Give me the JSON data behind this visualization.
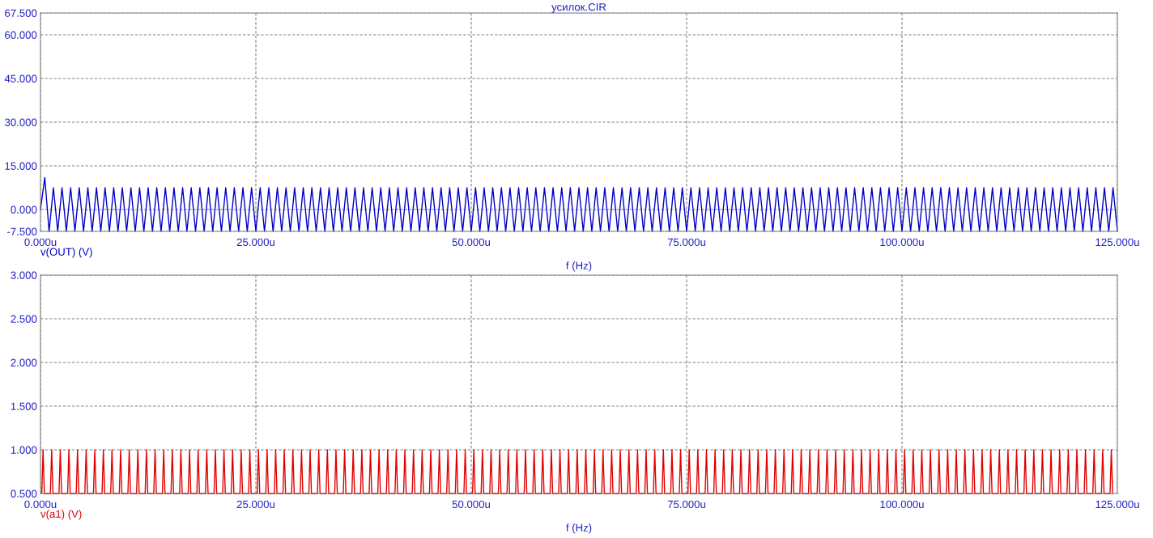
{
  "chart_data": [
    {
      "type": "line",
      "title": "усилок.CIR",
      "xlabel": "f (Hz)",
      "xlim": [
        0,
        125
      ],
      "xticks": [
        {
          "value": 0,
          "label": "0.000u"
        },
        {
          "value": 25,
          "label": "25.000u"
        },
        {
          "value": 50,
          "label": "50.000u"
        },
        {
          "value": 75,
          "label": "75.000u"
        },
        {
          "value": 100,
          "label": "100.000u"
        },
        {
          "value": 125,
          "label": "125.000u"
        }
      ],
      "ylim": [
        -7.5,
        67.5
      ],
      "yticks": [
        {
          "value": -7.5,
          "label": "-7.500"
        },
        {
          "value": 0,
          "label": "0.000"
        },
        {
          "value": 15,
          "label": "15.000"
        },
        {
          "value": 30,
          "label": "30.000"
        },
        {
          "value": 45,
          "label": "45.000"
        },
        {
          "value": 60,
          "label": "60.000"
        },
        {
          "value": 67.5,
          "label": "67.500"
        }
      ],
      "grid": true,
      "line_style": "solid",
      "series": [
        {
          "name": "v(OUT) (V)",
          "color": "#0000c8",
          "x": [
            0,
            0.5,
            1,
            1.5,
            2,
            2.5,
            3,
            3.5,
            4,
            4.5,
            5,
            5.5,
            6,
            6.5,
            7,
            7.5,
            8,
            8.5,
            9,
            9.5,
            10,
            10.5,
            11,
            11.5,
            12,
            12.5,
            13,
            13.5,
            14,
            14.5,
            15,
            15.5,
            16,
            16.5,
            17,
            17.5,
            18,
            18.5,
            19,
            19.5,
            20,
            20.5,
            21,
            21.5,
            22,
            22.5,
            23,
            23.5,
            24,
            24.5,
            25,
            25.5,
            26,
            26.5,
            27,
            27.5,
            28,
            28.5,
            29,
            29.5,
            30,
            30.5,
            31,
            31.5,
            32,
            32.5,
            33,
            33.5,
            34,
            34.5,
            35,
            35.5,
            36,
            36.5,
            37,
            37.5,
            38,
            38.5,
            39,
            39.5,
            40,
            40.5,
            41,
            41.5,
            42,
            42.5,
            43,
            43.5,
            44,
            44.5,
            45,
            45.5,
            46,
            46.5,
            47,
            47.5,
            48,
            48.5,
            49,
            49.5,
            50,
            50.5,
            51,
            51.5,
            52,
            52.5,
            53,
            53.5,
            54,
            54.5,
            55,
            55.5,
            56,
            56.5,
            57,
            57.5,
            58,
            58.5,
            59,
            59.5,
            60,
            60.5,
            61,
            61.5,
            62,
            62.5,
            63,
            63.5,
            64,
            64.5,
            65,
            65.5,
            66,
            66.5,
            67,
            67.5,
            68,
            68.5,
            69,
            69.5,
            70,
            70.5,
            71,
            71.5,
            72,
            72.5,
            73,
            73.5,
            74,
            74.5,
            75,
            75.5,
            76,
            76.5,
            77,
            77.5,
            78,
            78.5,
            79,
            79.5,
            80,
            80.5,
            81,
            81.5,
            82,
            82.5,
            83,
            83.5,
            84,
            84.5,
            85,
            85.5,
            86,
            86.5,
            87,
            87.5,
            88,
            88.5,
            89,
            89.5,
            90,
            90.5,
            91,
            91.5,
            92,
            92.5,
            93,
            93.5,
            94,
            94.5,
            95,
            95.5,
            96,
            96.5,
            97,
            97.5,
            98,
            98.5,
            99,
            99.5,
            100,
            100.5,
            101,
            101.5,
            102,
            102.5,
            103,
            103.5,
            104,
            104.5,
            105,
            105.5,
            106,
            106.5,
            107,
            107.5,
            108,
            108.5,
            109,
            109.5,
            110,
            110.5,
            111,
            111.5,
            112,
            112.5,
            113,
            113.5,
            114,
            114.5,
            115,
            115.5,
            116,
            116.5,
            117,
            117.5,
            118,
            118.5,
            119,
            119.5,
            120,
            120.5,
            121,
            121.5,
            122,
            122.5,
            123,
            123.5,
            124,
            124.5,
            125
          ],
          "values": [
            0,
            11,
            -7.5,
            7.5,
            -7.5,
            7.5,
            -7.5,
            7.5,
            -7.5,
            7.5,
            -7.5,
            7.5,
            -7.5,
            7.5,
            -7.5,
            7.5,
            -7.5,
            7.5,
            -7.5,
            7.5,
            -7.5,
            7.5,
            -7.5,
            7.5,
            -7.5,
            7.5,
            -7.5,
            7.5,
            -7.5,
            7.5,
            -7.5,
            7.5,
            -7.5,
            7.5,
            -7.5,
            7.5,
            -7.5,
            7.5,
            -7.5,
            7.5,
            -7.5,
            7.5,
            -7.5,
            7.5,
            -7.5,
            7.5,
            -7.5,
            7.5,
            -7.5,
            7.5,
            -7.5,
            7.5,
            -7.5,
            7.5,
            -7.5,
            7.5,
            -7.5,
            7.5,
            -7.5,
            7.5,
            -7.5,
            7.5,
            -7.5,
            7.5,
            -7.5,
            7.5,
            -7.5,
            7.5,
            -7.5,
            7.5,
            -7.5,
            7.5,
            -7.5,
            7.5,
            -7.5,
            7.5,
            -7.5,
            7.5,
            -7.5,
            7.5,
            -7.5,
            7.5,
            -7.5,
            7.5,
            -7.5,
            7.5,
            -7.5,
            7.5,
            -7.5,
            7.5,
            -7.5,
            7.5,
            -7.5,
            7.5,
            -7.5,
            7.5,
            -7.5,
            7.5,
            -7.5,
            7.5,
            -7.5,
            7.5,
            -7.5,
            7.5,
            -7.5,
            7.5,
            -7.5,
            7.5,
            -7.5,
            7.5,
            -7.5,
            7.5,
            -7.5,
            7.5,
            -7.5,
            7.5,
            -7.5,
            7.5,
            -7.5,
            7.5,
            -7.5,
            7.5,
            -7.5,
            7.5,
            -7.5,
            7.5,
            -7.5,
            7.5,
            -7.5,
            7.5,
            -7.5,
            7.5,
            -7.5,
            7.5,
            -7.5,
            7.5,
            -7.5,
            7.5,
            -7.5,
            7.5,
            -7.5,
            7.5,
            -7.5,
            7.5,
            -7.5,
            7.5,
            -7.5,
            7.5,
            -7.5,
            7.5,
            -7.5,
            7.5,
            -7.5,
            7.5,
            -7.5,
            7.5,
            -7.5,
            7.5,
            -7.5,
            7.5,
            -7.5,
            7.5,
            -7.5,
            7.5,
            -7.5,
            7.5,
            -7.5,
            7.5,
            -7.5,
            7.5,
            -7.5,
            7.5,
            -7.5,
            7.5,
            -7.5,
            7.5,
            -7.5,
            7.5,
            -7.5,
            7.5,
            -7.5,
            7.5,
            -7.5,
            7.5,
            -7.5,
            7.5,
            -7.5,
            7.5,
            -7.5,
            7.5,
            -7.5,
            7.5,
            -7.5,
            7.5,
            -7.5,
            7.5,
            -7.5,
            7.5,
            -7.5,
            7.5,
            -7.5,
            7.5,
            -7.5,
            7.5,
            -7.5,
            7.5,
            -7.5,
            7.5,
            -7.5,
            7.5,
            -7.5,
            7.5,
            -7.5,
            7.5,
            -7.5,
            7.5,
            -7.5,
            7.5,
            -7.5,
            7.5,
            -7.5,
            7.5,
            -7.5,
            7.5,
            -7.5,
            7.5,
            -7.5,
            7.5,
            -7.5,
            7.5,
            -7.5,
            7.5,
            -7.5,
            7.5,
            -7.5,
            7.5,
            -7.5,
            7.5,
            -7.5,
            7.5,
            -7.5,
            7.5,
            -7.5,
            7.5,
            -7.5,
            7.5,
            -7.5,
            7.5,
            -7.5,
            7.5,
            -7.5
          ]
        }
      ]
    },
    {
      "type": "line",
      "xlabel": "f (Hz)",
      "xlim": [
        0,
        125
      ],
      "xticks": [
        {
          "value": 0,
          "label": "0.000u"
        },
        {
          "value": 25,
          "label": "25.000u"
        },
        {
          "value": 50,
          "label": "50.000u"
        },
        {
          "value": 75,
          "label": "75.000u"
        },
        {
          "value": 100,
          "label": "100.000u"
        },
        {
          "value": 125,
          "label": "125.000u"
        }
      ],
      "ylim": [
        0.5,
        3
      ],
      "yticks": [
        {
          "value": 0.5,
          "label": "0.500"
        },
        {
          "value": 1,
          "label": "1.000"
        },
        {
          "value": 1.5,
          "label": "1.500"
        },
        {
          "value": 2,
          "label": "2.000"
        },
        {
          "value": 2.5,
          "label": "2.500"
        },
        {
          "value": 3,
          "label": "3.000"
        }
      ],
      "grid": true,
      "line_style": "solid",
      "series": [
        {
          "name": "v(a1) (V)",
          "color": "#e00000",
          "x": [
            0.15,
            0.3,
            0.45,
            1.15,
            1.3,
            1.45,
            2.15,
            2.3,
            2.45,
            3.15,
            3.3,
            3.45,
            4.15,
            4.3,
            4.45,
            5.15,
            5.3,
            5.45,
            6.15,
            6.3,
            6.45,
            7.15,
            7.3,
            7.45,
            8.15,
            8.3,
            8.45,
            9.15,
            9.3,
            9.45,
            10.15,
            10.3,
            10.45,
            11.15,
            11.3,
            11.45,
            12.15,
            12.3,
            12.45,
            13.15,
            13.3,
            13.45,
            14.15,
            14.3,
            14.45,
            15.15,
            15.3,
            15.45,
            16.15,
            16.3,
            16.45,
            17.15,
            17.3,
            17.45,
            18.15,
            18.3,
            18.45,
            19.15,
            19.3,
            19.45,
            20.15,
            20.3,
            20.45,
            21.15,
            21.3,
            21.45,
            22.15,
            22.3,
            22.45,
            23.15,
            23.3,
            23.45,
            24.15,
            24.3,
            24.45,
            25.15,
            25.3,
            25.45,
            26.15,
            26.3,
            26.45,
            27.15,
            27.3,
            27.45,
            28.15,
            28.3,
            28.45,
            29.15,
            29.3,
            29.45,
            30.15,
            30.3,
            30.45,
            31.15,
            31.3,
            31.45,
            32.15,
            32.3,
            32.45,
            33.15,
            33.3,
            33.45,
            34.15,
            34.3,
            34.45,
            35.15,
            35.3,
            35.45,
            36.15,
            36.3,
            36.45,
            37.15,
            37.3,
            37.45,
            38.15,
            38.3,
            38.45,
            39.15,
            39.3,
            39.45,
            40.15,
            40.3,
            40.45,
            41.15,
            41.3,
            41.45,
            42.15,
            42.3,
            42.45,
            43.15,
            43.3,
            43.45,
            44.15,
            44.3,
            44.45,
            45.15,
            45.3,
            45.45,
            46.15,
            46.3,
            46.45,
            47.15,
            47.3,
            47.45,
            48.15,
            48.3,
            48.45,
            49.15,
            49.3,
            49.45,
            50.15,
            50.3,
            50.45,
            51.15,
            51.3,
            51.45,
            52.15,
            52.3,
            52.45,
            53.15,
            53.3,
            53.45,
            54.15,
            54.3,
            54.45,
            55.15,
            55.3,
            55.45,
            56.15,
            56.3,
            56.45,
            57.15,
            57.3,
            57.45,
            58.15,
            58.3,
            58.45,
            59.15,
            59.3,
            59.45,
            60.15,
            60.3,
            60.45,
            61.15,
            61.3,
            61.45,
            62.15,
            62.3,
            62.45,
            63.15,
            63.3,
            63.45,
            64.15,
            64.3,
            64.45,
            65.15,
            65.3,
            65.45,
            66.15,
            66.3,
            66.45,
            67.15,
            67.3,
            67.45,
            68.15,
            68.3,
            68.45,
            69.15,
            69.3,
            69.45,
            70.15,
            70.3,
            70.45,
            71.15,
            71.3,
            71.45,
            72.15,
            72.3,
            72.45,
            73.15,
            73.3,
            73.45,
            74.15,
            74.3,
            74.45,
            75.15,
            75.3,
            75.45,
            76.15,
            76.3,
            76.45,
            77.15,
            77.3,
            77.45,
            78.15,
            78.3,
            78.45,
            79.15,
            79.3,
            79.45,
            80.15,
            80.3,
            80.45,
            81.15,
            81.3,
            81.45,
            82.15,
            82.3,
            82.45,
            83.15,
            83.3,
            83.45,
            84.15,
            84.3,
            84.45,
            85.15,
            85.3,
            85.45,
            86.15,
            86.3,
            86.45,
            87.15,
            87.3,
            87.45,
            88.15,
            88.3,
            88.45,
            89.15,
            89.3,
            89.45,
            90.15,
            90.3,
            90.45,
            91.15,
            91.3,
            91.45,
            92.15,
            92.3,
            92.45,
            93.15,
            93.3,
            93.45,
            94.15,
            94.3,
            94.45,
            95.15,
            95.3,
            95.45,
            96.15,
            96.3,
            96.45,
            97.15,
            97.3,
            97.45,
            98.15,
            98.3,
            98.45,
            99.15,
            99.3,
            99.45,
            100.15,
            100.3,
            100.45,
            101.15,
            101.3,
            101.45,
            102.15,
            102.3,
            102.45,
            103.15,
            103.3,
            103.45,
            104.15,
            104.3,
            104.45,
            105.15,
            105.3,
            105.45,
            106.15,
            106.3,
            106.45,
            107.15,
            107.3,
            107.45,
            108.15,
            108.3,
            108.45,
            109.15,
            109.3,
            109.45,
            110.15,
            110.3,
            110.45,
            111.15,
            111.3,
            111.45,
            112.15,
            112.3,
            112.45,
            113.15,
            113.3,
            113.45,
            114.15,
            114.3,
            114.45,
            115.15,
            115.3,
            115.45,
            116.15,
            116.3,
            116.45,
            117.15,
            117.3,
            117.45,
            118.15,
            118.3,
            118.45,
            119.15,
            119.3,
            119.45,
            120.15,
            120.3,
            120.45,
            121.15,
            121.3,
            121.45,
            122.15,
            122.3,
            122.45,
            123.15,
            123.3,
            123.45,
            124.15,
            124.3,
            124.45
          ],
          "values": [
            0.5,
            1,
            0.5,
            0.5,
            1,
            0.5,
            0.5,
            1,
            0.5,
            0.5,
            1,
            0.5,
            0.5,
            1,
            0.5,
            0.5,
            1,
            0.5,
            0.5,
            1,
            0.5,
            0.5,
            1,
            0.5,
            0.5,
            1,
            0.5,
            0.5,
            1,
            0.5,
            0.5,
            1,
            0.5,
            0.5,
            1,
            0.5,
            0.5,
            1,
            0.5,
            0.5,
            1,
            0.5,
            0.5,
            1,
            0.5,
            0.5,
            1,
            0.5,
            0.5,
            1,
            0.5,
            0.5,
            1,
            0.5,
            0.5,
            1,
            0.5,
            0.5,
            1,
            0.5,
            0.5,
            1,
            0.5,
            0.5,
            1,
            0.5,
            0.5,
            1,
            0.5,
            0.5,
            1,
            0.5,
            0.5,
            1,
            0.5,
            0.5,
            1,
            0.5,
            0.5,
            1,
            0.5,
            0.5,
            1,
            0.5,
            0.5,
            1,
            0.5,
            0.5,
            1,
            0.5,
            0.5,
            1,
            0.5,
            0.5,
            1,
            0.5,
            0.5,
            1,
            0.5,
            0.5,
            1,
            0.5,
            0.5,
            1,
            0.5,
            0.5,
            1,
            0.5,
            0.5,
            1,
            0.5,
            0.5,
            1,
            0.5,
            0.5,
            1,
            0.5,
            0.5,
            1,
            0.5,
            0.5,
            1,
            0.5,
            0.5,
            1,
            0.5,
            0.5,
            1,
            0.5,
            0.5,
            1,
            0.5,
            0.5,
            1,
            0.5,
            0.5,
            1,
            0.5,
            0.5,
            1,
            0.5,
            0.5,
            1,
            0.5,
            0.5,
            1,
            0.5,
            0.5,
            1,
            0.5,
            0.5,
            1,
            0.5,
            0.5,
            1,
            0.5,
            0.5,
            1,
            0.5,
            0.5,
            1,
            0.5,
            0.5,
            1,
            0.5,
            0.5,
            1,
            0.5,
            0.5,
            1,
            0.5,
            0.5,
            1,
            0.5,
            0.5,
            1,
            0.5,
            0.5,
            1,
            0.5,
            0.5,
            1,
            0.5,
            0.5,
            1,
            0.5,
            0.5,
            1,
            0.5,
            0.5,
            1,
            0.5,
            0.5,
            1,
            0.5,
            0.5,
            1,
            0.5,
            0.5,
            1,
            0.5,
            0.5,
            1,
            0.5,
            0.5,
            1,
            0.5,
            0.5,
            1,
            0.5,
            0.5,
            1,
            0.5,
            0.5,
            1,
            0.5,
            0.5,
            1,
            0.5,
            0.5,
            1,
            0.5,
            0.5,
            1,
            0.5,
            0.5,
            1,
            0.5,
            0.5,
            1,
            0.5,
            0.5,
            1,
            0.5,
            0.5,
            1,
            0.5,
            0.5,
            1,
            0.5,
            0.5,
            1,
            0.5,
            0.5,
            1,
            0.5,
            0.5,
            1,
            0.5,
            0.5,
            1,
            0.5,
            0.5,
            1,
            0.5,
            0.5,
            1,
            0.5,
            0.5,
            1,
            0.5,
            0.5,
            1,
            0.5,
            0.5,
            1,
            0.5,
            0.5,
            1,
            0.5,
            0.5,
            1,
            0.5,
            0.5,
            1,
            0.5,
            0.5,
            1,
            0.5,
            0.5,
            1,
            0.5,
            0.5,
            1,
            0.5,
            0.5,
            1,
            0.5,
            0.5,
            1,
            0.5,
            0.5,
            1,
            0.5,
            0.5,
            1,
            0.5,
            0.5,
            1,
            0.5,
            0.5,
            1,
            0.5,
            0.5,
            1,
            0.5,
            0.5,
            1,
            0.5,
            0.5,
            1,
            0.5,
            0.5,
            1,
            0.5,
            0.5,
            1,
            0.5,
            0.5,
            1,
            0.5,
            0.5,
            1,
            0.5,
            0.5,
            1,
            0.5,
            0.5,
            1,
            0.5,
            0.5,
            1,
            0.5,
            0.5,
            1,
            0.5,
            0.5,
            1,
            0.5,
            0.5,
            1,
            0.5,
            0.5,
            1,
            0.5,
            0.5,
            1,
            0.5,
            0.5,
            1,
            0.5,
            0.5,
            1,
            0.5,
            0.5,
            1,
            0.5,
            0.5,
            1,
            0.5,
            0.5,
            1,
            0.5,
            0.5,
            1,
            0.5,
            0.5,
            1,
            0.5,
            0.5,
            1,
            0.5,
            0.5,
            1,
            0.5
          ]
        }
      ]
    }
  ]
}
